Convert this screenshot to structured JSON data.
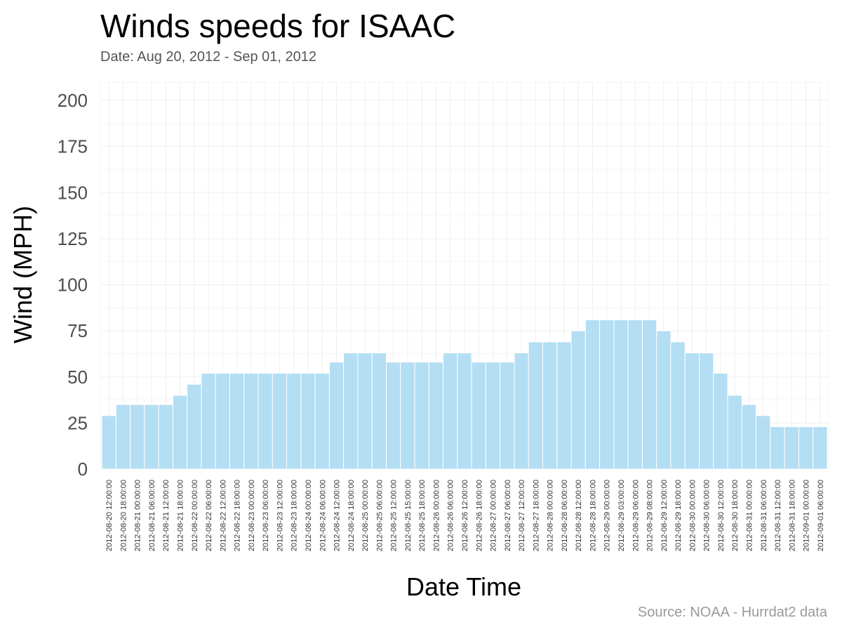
{
  "title": "Winds speeds for ISAAC",
  "subtitle": "Date:  Aug 20, 2012 - Sep 01, 2012",
  "source": "Source: NOAA - Hurrdat2 data",
  "colors": {
    "bar": "#b3def3",
    "bar_edge": "#ffffff",
    "grid": "#efefef"
  },
  "chart_data": {
    "type": "bar",
    "xlabel": "Date Time",
    "ylabel": "Wind (MPH)",
    "ylim": [
      0,
      200
    ],
    "yticks": [
      0,
      25,
      50,
      75,
      100,
      125,
      150,
      175,
      200
    ],
    "grid": true,
    "categories": [
      "2012-08-20 12:00:00",
      "2012-08-20 18:00:00",
      "2012-08-21 00:00:00",
      "2012-08-21 06:00:00",
      "2012-08-21 12:00:00",
      "2012-08-21 18:00:00",
      "2012-08-22 00:00:00",
      "2012-08-22 06:00:00",
      "2012-08-22 12:00:00",
      "2012-08-22 18:00:00",
      "2012-08-23 00:00:00",
      "2012-08-23 06:00:00",
      "2012-08-23 12:00:00",
      "2012-08-23 18:00:00",
      "2012-08-24 00:00:00",
      "2012-08-24 06:00:00",
      "2012-08-24 12:00:00",
      "2012-08-24 18:00:00",
      "2012-08-25 00:00:00",
      "2012-08-25 06:00:00",
      "2012-08-25 12:00:00",
      "2012-08-25 15:00:00",
      "2012-08-25 18:00:00",
      "2012-08-26 00:00:00",
      "2012-08-26 06:00:00",
      "2012-08-26 12:00:00",
      "2012-08-26 18:00:00",
      "2012-08-27 00:00:00",
      "2012-08-27 06:00:00",
      "2012-08-27 12:00:00",
      "2012-08-27 18:00:00",
      "2012-08-28 00:00:00",
      "2012-08-28 06:00:00",
      "2012-08-28 12:00:00",
      "2012-08-28 18:00:00",
      "2012-08-29 00:00:00",
      "2012-08-29 03:00:00",
      "2012-08-29 06:00:00",
      "2012-08-29 08:00:00",
      "2012-08-29 12:00:00",
      "2012-08-29 18:00:00",
      "2012-08-30 00:00:00",
      "2012-08-30 06:00:00",
      "2012-08-30 12:00:00",
      "2012-08-30 18:00:00",
      "2012-08-31 00:00:00",
      "2012-08-31 06:00:00",
      "2012-08-31 12:00:00",
      "2012-08-31 18:00:00",
      "2012-09-01 00:00:00",
      "2012-09-01 06:00:00"
    ],
    "values": [
      29,
      35,
      35,
      35,
      35,
      40,
      46,
      52,
      52,
      52,
      52,
      52,
      52,
      52,
      52,
      52,
      58,
      63,
      63,
      63,
      58,
      58,
      58,
      58,
      63,
      63,
      58,
      58,
      58,
      63,
      69,
      69,
      69,
      75,
      81,
      81,
      81,
      81,
      81,
      75,
      69,
      63,
      63,
      52,
      40,
      35,
      29,
      23,
      23,
      23,
      23
    ]
  }
}
